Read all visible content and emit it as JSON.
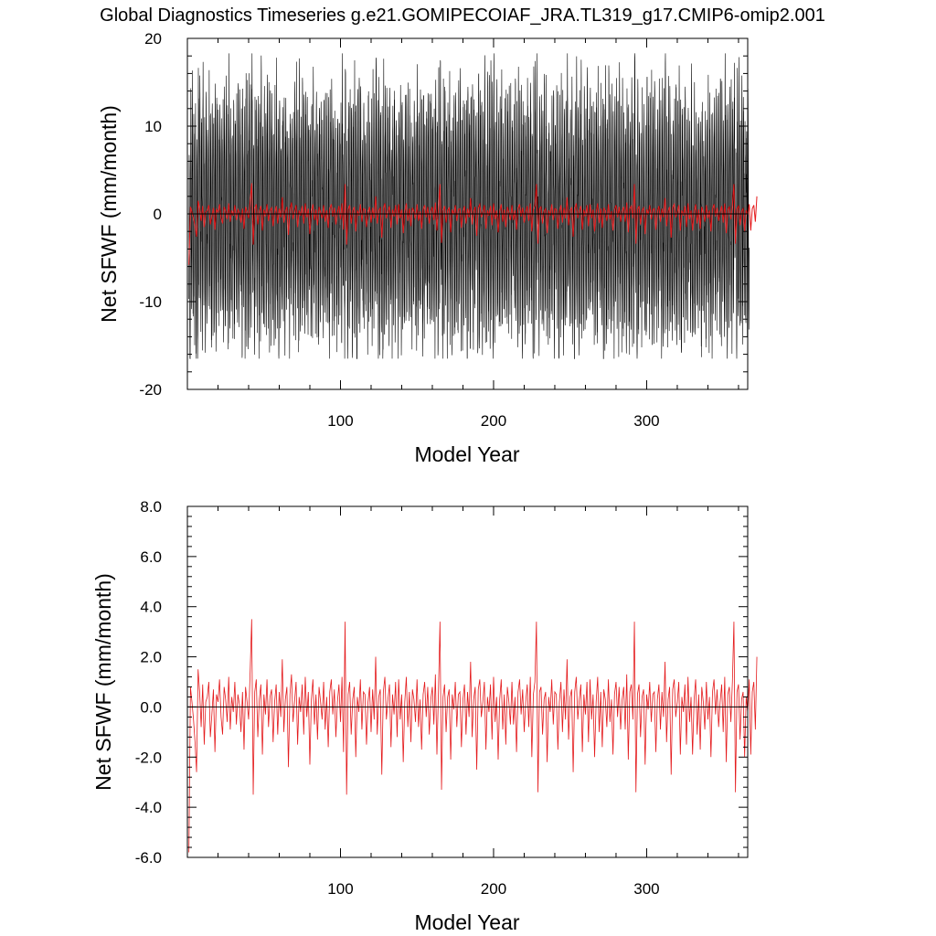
{
  "title": "Global Diagnostics Timeseries g.e21.GOMIPECOIAF_JRA.TL319_g17.CMIP6-omip2.001",
  "colors": {
    "monthly": "#000000",
    "annual": "#e41a1c",
    "axis": "#000000"
  },
  "chart_data": [
    {
      "type": "line",
      "xlabel": "Model Year",
      "ylabel": "Net SFWF (mm/month)",
      "xlim": [
        0,
        366
      ],
      "ylim": [
        -20,
        20
      ],
      "xticks": [
        100,
        200,
        300
      ],
      "xtick_labels": [
        "100",
        "200",
        "300"
      ],
      "yticks": [
        -20,
        -10,
        0,
        10,
        20
      ],
      "ytick_labels": [
        "-20",
        "-10",
        "0",
        "10",
        "20"
      ],
      "zero_line": true,
      "grid": false,
      "series": [
        {
          "style": "monthly",
          "note_range": [
            -16.5,
            18.3
          ],
          "sampling": "monthly",
          "years": [
            1,
            366
          ],
          "seasonal_amplitude": 12.0
        },
        {
          "style": "annual",
          "source": "panel2"
        }
      ]
    },
    {
      "type": "line",
      "xlabel": "Model Year",
      "ylabel": "Net SFWF (mm/month)",
      "xlim": [
        0,
        366
      ],
      "ylim": [
        -6.0,
        8.0
      ],
      "xticks": [
        100,
        200,
        300
      ],
      "xtick_labels": [
        "100",
        "200",
        "300"
      ],
      "yticks": [
        -6,
        -4,
        -2,
        0,
        2,
        4,
        6,
        8
      ],
      "ytick_labels": [
        "-6.0",
        "-4.0",
        "-2.0",
        "0.0",
        "2.0",
        "4.0",
        "6.0",
        "8.0"
      ],
      "zero_line": true,
      "grid": false,
      "series": [
        {
          "style": "annual",
          "x_start": 1,
          "values": [
            -5.8,
            0.8,
            0.2,
            -0.5,
            -1.4,
            -2.6,
            1.5,
            0.6,
            -0.8,
            0.9,
            -1.5,
            0.2,
            0.4,
            1.0,
            -1.2,
            -0.3,
            0.7,
            -1.8,
            0.5,
            0.2,
            1.1,
            -0.4,
            -1.1,
            0.8,
            0.3,
            -0.6,
            1.2,
            -0.9,
            0.4,
            -0.2,
            1.0,
            -0.7,
            0.5,
            0.1,
            -1.0,
            0.6,
            -1.7,
            0.8,
            0.2,
            -0.5,
            1.4,
            3.5,
            -3.5,
            0.6,
            1.1,
            -1.2,
            0.3,
            0.9,
            -1.9,
            0.5,
            -0.3,
            1.1,
            -0.8,
            0.4,
            0.7,
            -1.4,
            0.2,
            0.9,
            -1.1,
            0.6,
            -0.4,
            1.9,
            -1.0,
            0.3,
            0.8,
            -2.4,
            0.5,
            1.3,
            -0.6,
            0.2,
            1.0,
            -1.5,
            0.4,
            -0.2,
            0.9,
            -1.1,
            1.2,
            -0.4,
            0.6,
            -2.3,
            0.3,
            1.1,
            -0.7,
            0.5,
            -1.3,
            0.8,
            0.2,
            -0.5,
            1.0,
            -0.9,
            0.4,
            -1.6,
            0.6,
            1.1,
            -0.3,
            0.7,
            -1.2,
            0.2,
            0.9,
            -0.6,
            1.2,
            -1.8,
            3.4,
            -3.5,
            0.5,
            1.0,
            -1.1,
            0.3,
            0.8,
            -2.0,
            0.4,
            -0.2,
            1.1,
            -0.9,
            0.6,
            0.5,
            -1.5,
            0.2,
            0.8,
            -1.0,
            0.7,
            -0.5,
            2.0,
            -1.1,
            0.4,
            0.7,
            -2.7,
            0.6,
            1.2,
            -0.5,
            0.3,
            0.9,
            -1.6,
            0.5,
            -0.3,
            1.0,
            -1.2,
            1.1,
            -0.5,
            0.5,
            -2.2,
            0.2,
            1.2,
            -0.8,
            0.6,
            -1.4,
            0.7,
            0.3,
            -0.6,
            1.1,
            -0.8,
            0.3,
            -1.7,
            0.5,
            1.0,
            -0.4,
            0.8,
            -1.1,
            0.3,
            0.8,
            -0.7,
            1.3,
            -1.9,
            0.6,
            3.4,
            -3.3,
            0.4,
            0.9,
            -1.0,
            0.4,
            0.7,
            -2.1,
            0.5,
            -0.1,
            1.0,
            -0.8,
            0.5,
            0.6,
            -1.6,
            0.3,
            0.9,
            -1.1,
            0.6,
            -0.4,
            1.8,
            -1.2,
            0.3,
            0.8,
            -2.5,
            0.7,
            1.1,
            -0.4,
            0.2,
            1.0,
            -1.7,
            0.4,
            -0.2,
            0.9,
            -1.3,
            1.2,
            -0.6,
            0.4,
            -2.1,
            0.3,
            1.1,
            -0.9,
            0.5,
            -1.5,
            0.8,
            0.2,
            -0.7,
            1.0,
            -0.7,
            0.4,
            -1.8,
            0.6,
            1.1,
            -0.3,
            0.7,
            -1.0,
            0.2,
            0.9,
            -0.8,
            1.2,
            -2.0,
            0.5,
            1.0,
            3.4,
            -3.4,
            0.6,
            0.8,
            -1.1,
            0.3,
            0.6,
            -2.2,
            0.4,
            -0.2,
            1.1,
            -0.7,
            0.6,
            0.5,
            -1.7,
            0.2,
            1.0,
            -1.0,
            0.7,
            -0.5,
            1.9,
            -1.3,
            0.4,
            0.7,
            -2.6,
            0.6,
            1.2,
            -0.5,
            0.3,
            0.9,
            -1.8,
            0.5,
            -0.3,
            1.0,
            -1.4,
            1.1,
            -0.5,
            0.5,
            -2.0,
            0.2,
            1.2,
            -1.0,
            0.6,
            -1.6,
            0.7,
            0.3,
            -0.8,
            1.1,
            -0.6,
            0.3,
            -1.9,
            0.5,
            1.0,
            -0.4,
            0.8,
            -0.9,
            0.3,
            0.8,
            -0.9,
            1.3,
            -2.1,
            0.6,
            0.9,
            -0.5,
            3.4,
            -3.4,
            0.5,
            0.9,
            -1.2,
            0.4,
            0.7,
            -2.3,
            0.5,
            -0.1,
            1.0,
            -0.6,
            0.5,
            0.6,
            -1.8,
            0.3,
            0.9,
            -0.9,
            0.6,
            -0.4,
            1.8,
            -1.4,
            0.3,
            0.8,
            -2.7,
            0.7,
            1.1,
            -0.4,
            0.2,
            1.0,
            -1.9,
            0.4,
            -0.2,
            0.9,
            -1.5,
            1.2,
            -0.6,
            0.4,
            -1.9,
            0.3,
            1.1,
            -1.1,
            0.5,
            -1.7,
            0.8,
            0.2,
            -0.9,
            1.0,
            -0.5,
            0.4,
            -2.0,
            0.6,
            1.1,
            -0.3,
            0.7,
            -0.8,
            0.2,
            0.9,
            -1.0,
            1.2,
            -2.2,
            0.5,
            0.8,
            -0.6,
            1.0,
            3.4,
            -3.4,
            0.6,
            0.9,
            -1.3,
            0.3,
            0.6,
            -2.0,
            0.4,
            -0.2,
            1.1,
            -1.9,
            0.6,
            1.0,
            -0.9,
            2.0
          ]
        }
      ]
    }
  ]
}
